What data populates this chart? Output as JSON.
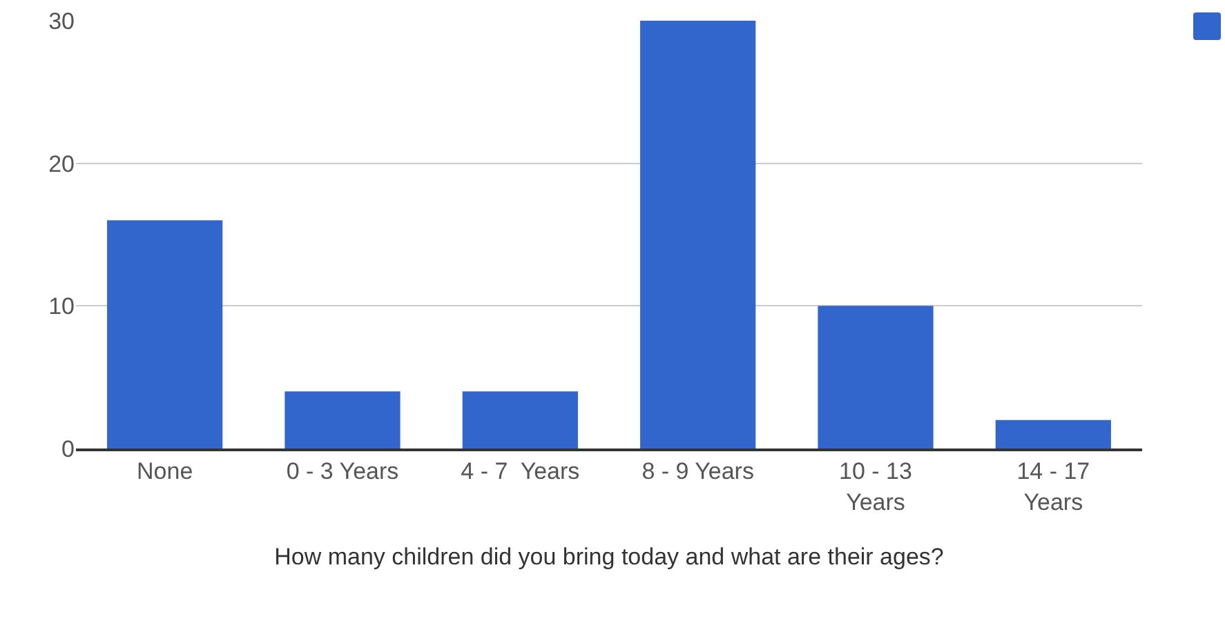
{
  "chart_data": {
    "type": "bar",
    "xlabel": "How many children did you bring today and what are their ages?",
    "categories": [
      "None",
      "0 - 3 Years",
      "4 - 7  Years",
      "8 - 9 Years",
      "10 - 13 Years",
      "14 - 17 Years"
    ],
    "series": [
      {
        "color": "#3366cc",
        "values": [
          16,
          4,
          4,
          30,
          10,
          2
        ]
      }
    ],
    "ylim": [
      0,
      30
    ],
    "yticks": [
      0,
      10,
      20,
      30
    ],
    "grid": "y"
  }
}
